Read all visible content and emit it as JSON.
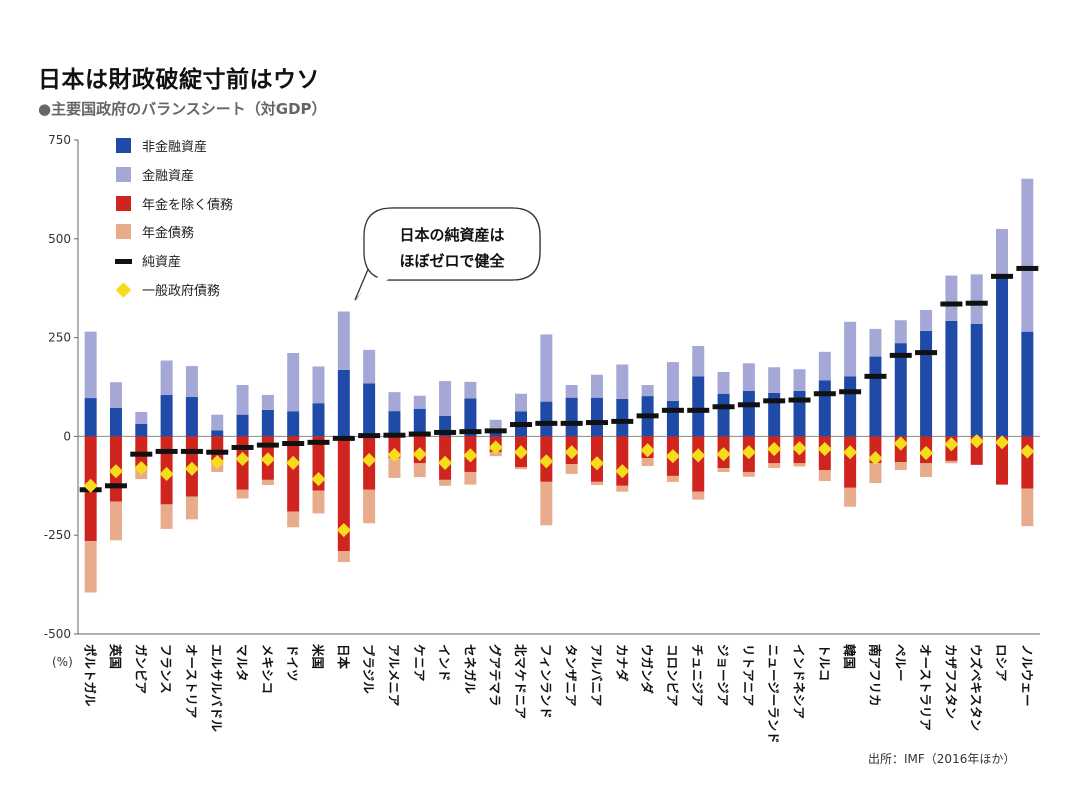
{
  "title": "日本は財政破綻寸前はウソ",
  "subtitle": "●主要国政府のバランスシート（対GDP）",
  "source": "出所：IMF（2016年ほか）",
  "unit_label": "(%)",
  "callout": {
    "line1": "日本の純資産は",
    "line2": "ほぼゼロで健全"
  },
  "colors": {
    "non_financial_assets": "#1f4aa8",
    "financial_assets": "#a5a8d6",
    "non_pension_liabilities": "#d0241e",
    "pension_liabilities": "#e8ab8c",
    "net_worth": "#111111",
    "general_gov_debt": "#f5dc1e"
  },
  "chart_data": {
    "type": "bar",
    "title": "日本は財政破綻寸前はウソ",
    "subtitle": "●主要国政府のバランスシート（対GDP）",
    "ylabel": "(%)",
    "ylim": [
      -500,
      750
    ],
    "yticks": [
      "750",
      "500",
      "250",
      "0",
      "-250",
      "-500"
    ],
    "grid": false,
    "legend_position": "top-left",
    "categories": [
      "ポルトガル",
      "英国",
      "ガンビア",
      "フランス",
      "オーストリア",
      "エルサルバドル",
      "マルタ",
      "メキシコ",
      "ドイツ",
      "米国",
      "日本",
      "ブラジル",
      "アルメニア",
      "ケニア",
      "インド",
      "セネガル",
      "グアテマラ",
      "北マケドニア",
      "フィンランド",
      "タンザニア",
      "アルバニア",
      "カナダ",
      "ウガンダ",
      "コロンビア",
      "チュニジア",
      "ジョージア",
      "リトアニア",
      "ニュージーランド",
      "インドネシア",
      "トルコ",
      "韓国",
      "南アフリカ",
      "ペルー",
      "オーストラリア",
      "カザフスタン",
      "ウズベキスタン",
      "ロシア",
      "ノルウェー"
    ],
    "series": [
      {
        "name": "非金融資産",
        "values": [
          97,
          72,
          32,
          105,
          100,
          15,
          55,
          67,
          63,
          84,
          168,
          134,
          64,
          70,
          52,
          96,
          20,
          63,
          88,
          98,
          98,
          95,
          102,
          90,
          152,
          108,
          115,
          110,
          115,
          142,
          152,
          202,
          236,
          267,
          292,
          285,
          410,
          265
        ]
      },
      {
        "name": "金融資産",
        "values": [
          168,
          65,
          30,
          87,
          78,
          40,
          75,
          38,
          148,
          93,
          148,
          85,
          48,
          33,
          88,
          42,
          22,
          45,
          170,
          32,
          58,
          87,
          28,
          98,
          77,
          55,
          70,
          65,
          55,
          72,
          138,
          70,
          58,
          53,
          115,
          125,
          115,
          387
        ]
      },
      {
        "name": "年金を除く債務",
        "values": [
          -265,
          -165,
          -80,
          -172,
          -152,
          -60,
          -135,
          -110,
          -190,
          -137,
          -290,
          -135,
          -55,
          -68,
          -110,
          -90,
          -40,
          -78,
          -115,
          -70,
          -115,
          -125,
          -55,
          -100,
          -140,
          -80,
          -90,
          -68,
          -68,
          -85,
          -130,
          -68,
          -65,
          -68,
          -62,
          -72,
          -122,
          -132
        ]
      },
      {
        "name": "年金債務",
        "values": [
          -130,
          -98,
          -28,
          -62,
          -58,
          -30,
          -22,
          -13,
          -40,
          -58,
          -28,
          -85,
          -50,
          -35,
          -15,
          -32,
          -10,
          -5,
          -110,
          -25,
          -8,
          -15,
          -20,
          -15,
          -20,
          -10,
          -12,
          -12,
          -8,
          -28,
          -48,
          -50,
          -20,
          -35,
          -6,
          0,
          0,
          -95
        ]
      },
      {
        "name": "純資産",
        "values": [
          -135,
          -125,
          -45,
          -38,
          -38,
          -40,
          -28,
          -22,
          -18,
          -15,
          -5,
          2,
          3,
          6,
          10,
          12,
          14,
          30,
          33,
          33,
          35,
          38,
          52,
          66,
          66,
          75,
          80,
          90,
          92,
          108,
          113,
          152,
          205,
          212,
          335,
          337,
          405,
          425
        ]
      },
      {
        "name": "一般政府債務",
        "values": [
          -125,
          -88,
          -80,
          -95,
          -82,
          -65,
          -57,
          -58,
          -67,
          -108,
          -237,
          -60,
          -47,
          -45,
          -67,
          -48,
          -28,
          -40,
          -63,
          -40,
          -68,
          -88,
          -35,
          -50,
          -48,
          -45,
          -40,
          -32,
          -30,
          -32,
          -40,
          -55,
          -18,
          -42,
          -20,
          -12,
          -15,
          -38
        ]
      }
    ]
  }
}
